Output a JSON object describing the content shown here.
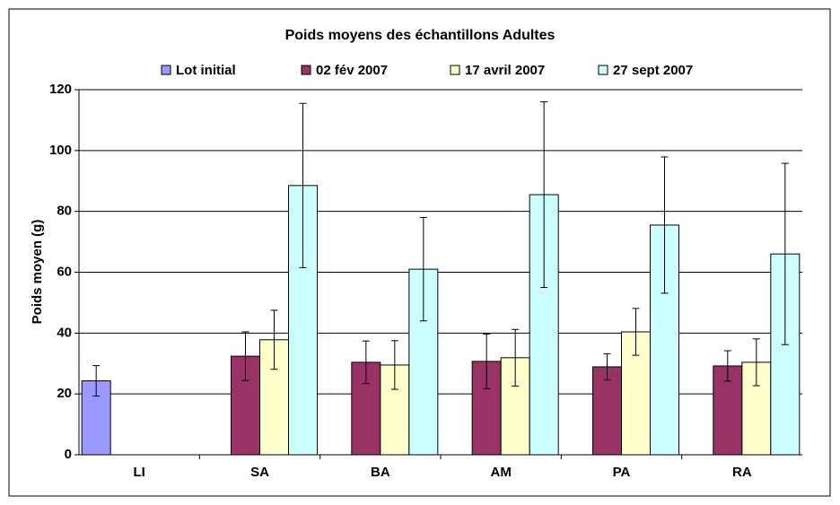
{
  "chart_data": {
    "type": "bar",
    "title": "Poids moyens des échantillons Adultes",
    "ylabel": "Poids moyen (g)",
    "categories": [
      "LI",
      "SA",
      "BA",
      "AM",
      "PA",
      "RA"
    ],
    "series": [
      {
        "name": "Lot initial",
        "color": "#9999ff",
        "values": [
          24.3,
          null,
          null,
          null,
          null,
          null
        ],
        "errors": [
          5,
          null,
          null,
          null,
          null,
          null
        ]
      },
      {
        "name": "02 fév 2007",
        "color": "#993366",
        "values": [
          null,
          32.4,
          30.4,
          30.7,
          28.9,
          29.2
        ],
        "errors": [
          null,
          8,
          7,
          9,
          4.3,
          5
        ]
      },
      {
        "name": "17 avril 2007",
        "color": "#ffffcc",
        "values": [
          null,
          37.8,
          29.5,
          31.9,
          40.4,
          30.4
        ],
        "errors": [
          null,
          9.7,
          8,
          9.3,
          7.7,
          7.7
        ]
      },
      {
        "name": "27 sept 2007",
        "color": "#ccffff",
        "values": [
          null,
          88.5,
          61,
          85.5,
          75.5,
          66
        ],
        "errors": [
          null,
          27,
          17,
          30.5,
          22.4,
          29.8
        ]
      }
    ],
    "ylim": [
      0,
      120
    ],
    "yticks": [
      0,
      20,
      40,
      60,
      80,
      100,
      120
    ],
    "grid": true,
    "legend": "top"
  }
}
